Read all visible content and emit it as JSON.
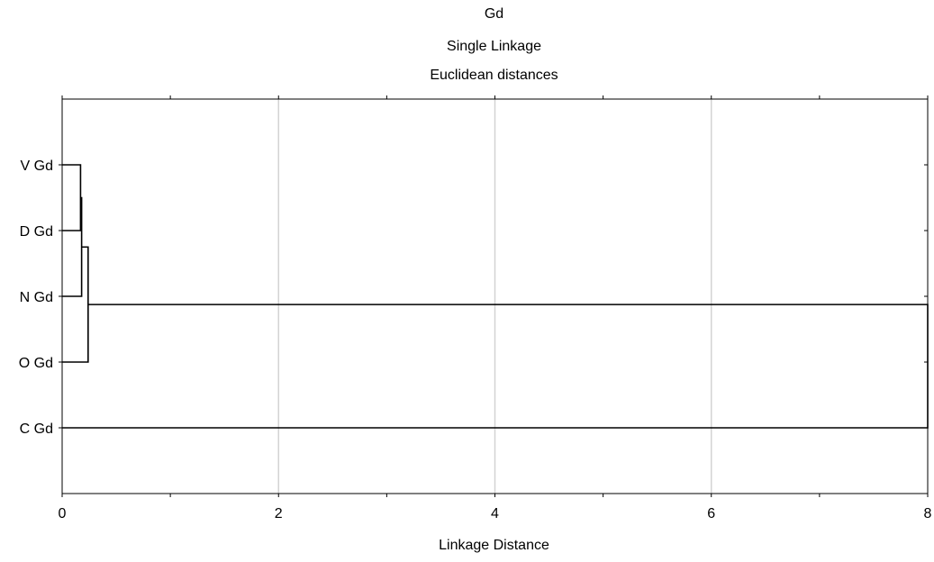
{
  "chart_data": {
    "type": "dendrogram",
    "title": "Gd",
    "subtitle_lines": [
      "Single Linkage",
      "Euclidean distances"
    ],
    "xlabel": "Linkage Distance",
    "ylabel": "",
    "xlim": [
      0,
      8
    ],
    "x_ticks": [
      0,
      2,
      4,
      6,
      8
    ],
    "grid": {
      "vertical": true,
      "horizontal": false
    },
    "leaves": [
      "V Gd",
      "D Gd",
      "N Gd",
      "O Gd",
      "C Gd"
    ],
    "merges": [
      {
        "left": "V Gd",
        "right": "D Gd",
        "distance": 0.17
      },
      {
        "left": "V Gd + D Gd",
        "right": "N Gd",
        "distance": 0.18
      },
      {
        "left": "V Gd + D Gd + N Gd",
        "right": "O Gd",
        "distance": 0.24
      },
      {
        "left": "V Gd + D Gd + N Gd + O Gd",
        "right": "C Gd",
        "distance": 8.0
      }
    ],
    "colors": {
      "lines": "#000000",
      "grid": "#d3d3d3",
      "frame": "#000000"
    }
  }
}
